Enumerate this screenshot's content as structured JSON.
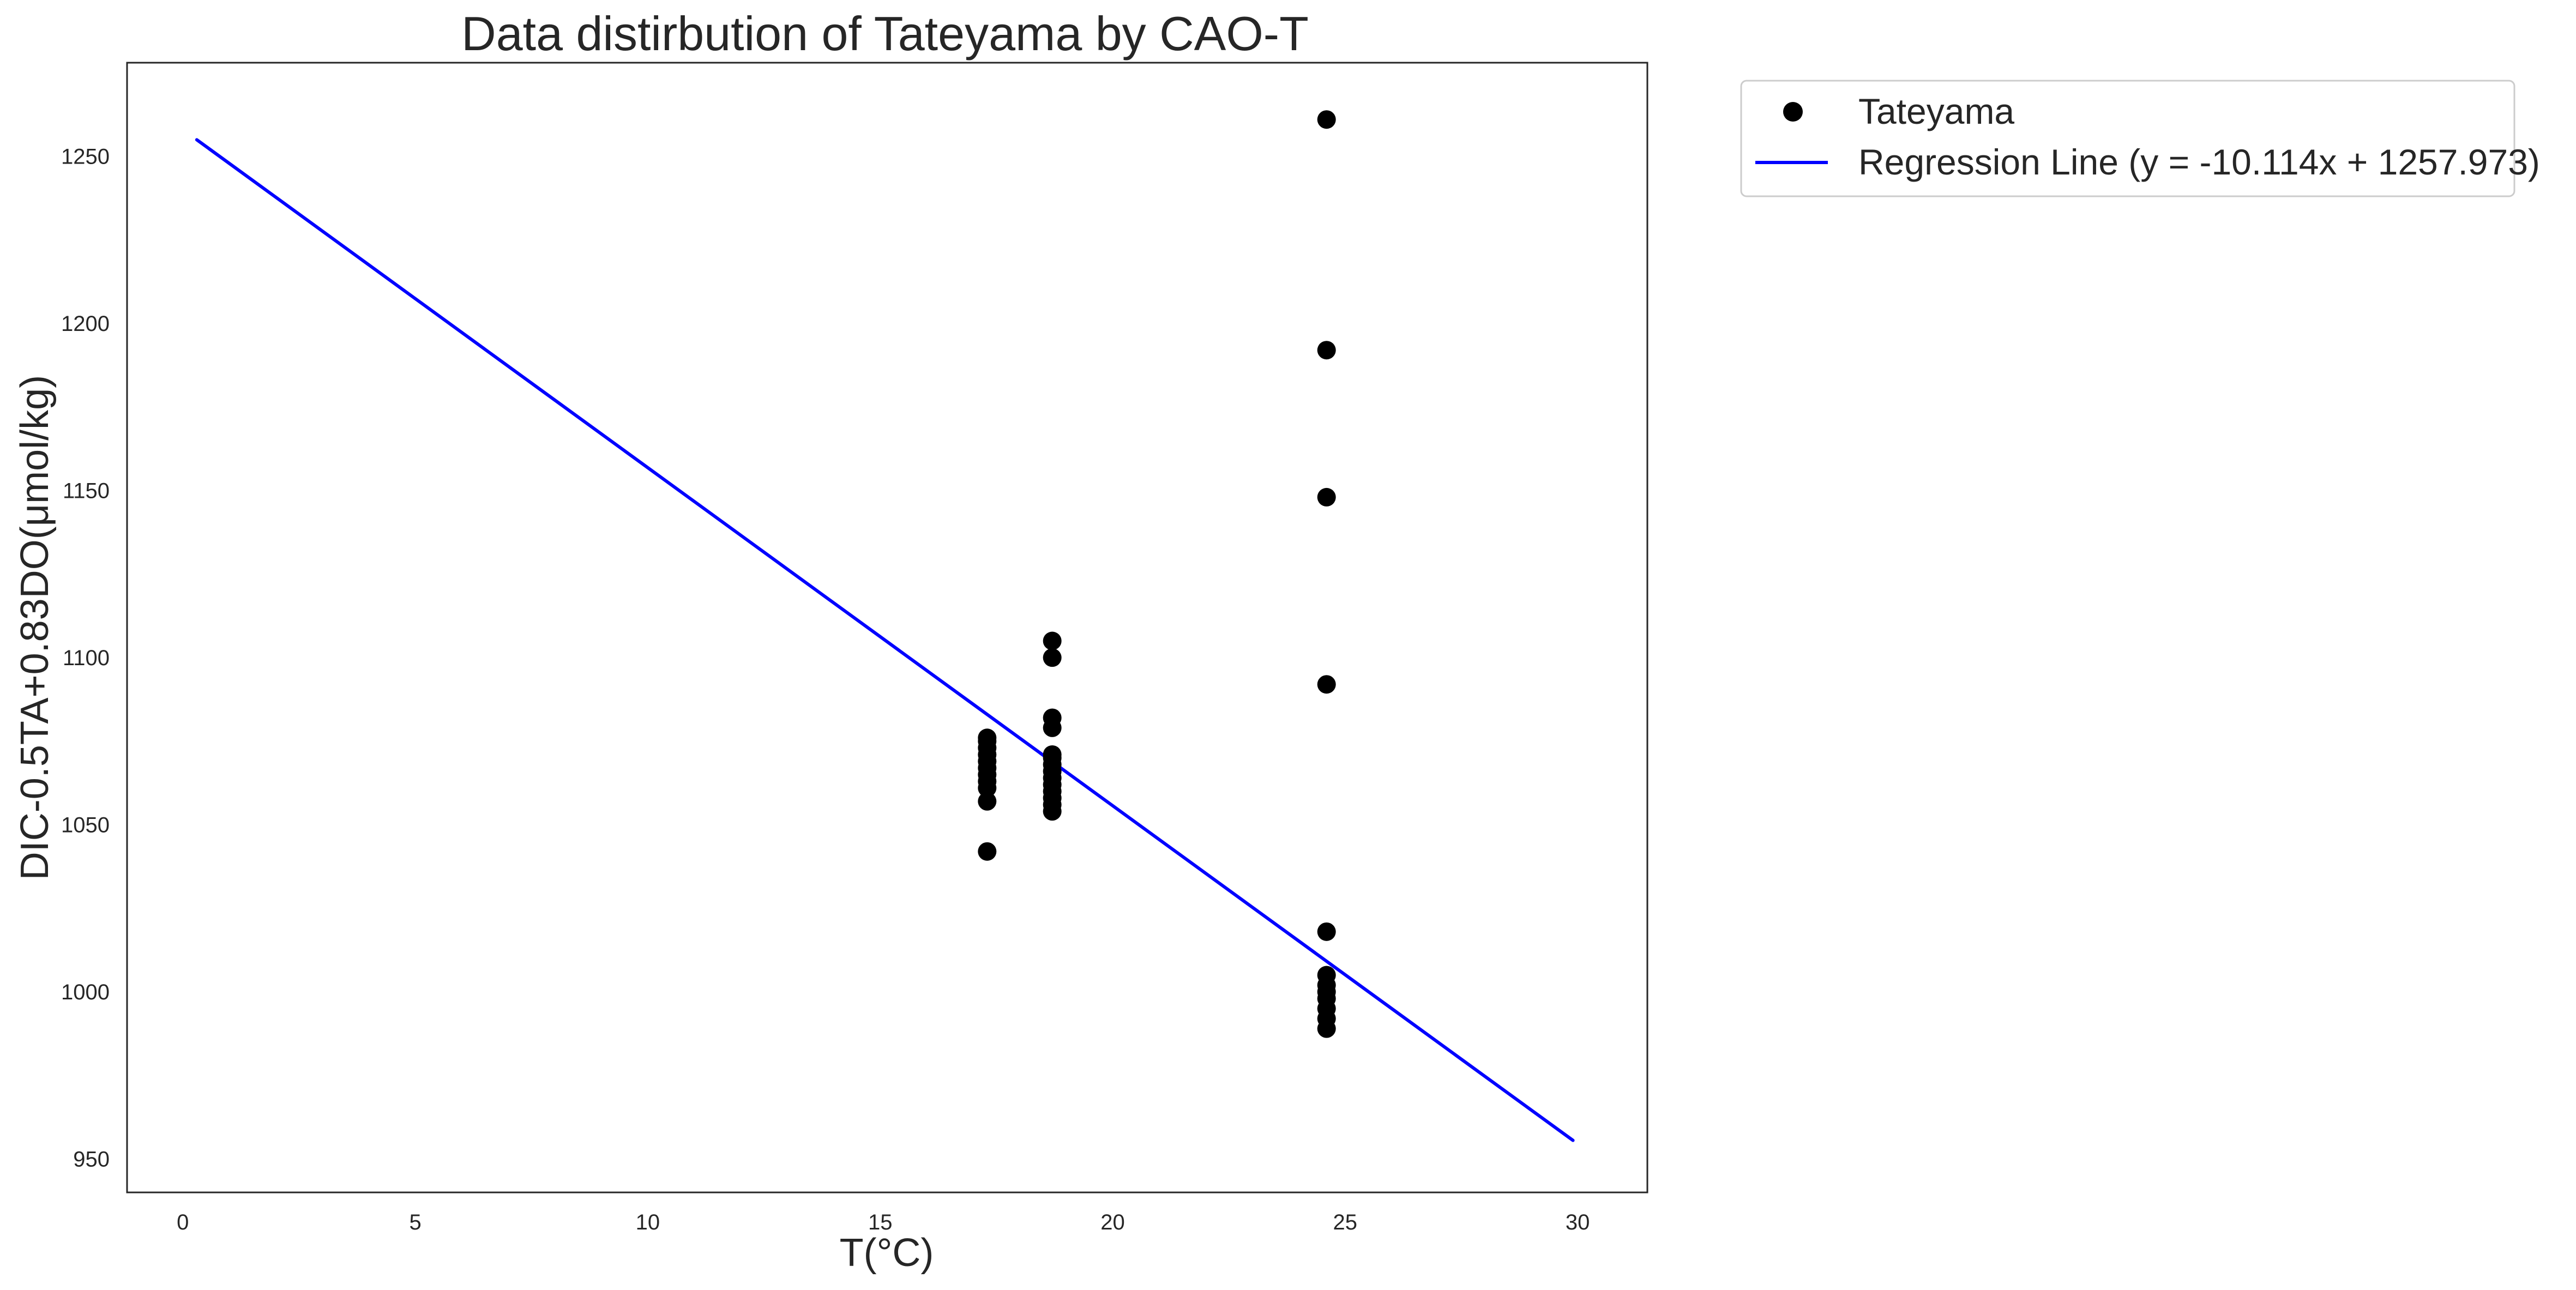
{
  "chart_data": {
    "type": "scatter",
    "title": "Data distirbution of Tateyama by CAO-T",
    "xlabel": "T(°C)",
    "ylabel": "DIC-0.5TA+0.83DO(μmol/kg)",
    "xlim": [
      -1.2,
      31.5
    ],
    "ylim": [
      940,
      1278
    ],
    "xticks": [
      0,
      5,
      10,
      15,
      20,
      25,
      30
    ],
    "yticks": [
      950,
      1000,
      1050,
      1100,
      1150,
      1200,
      1250
    ],
    "grid": false,
    "legend_position": "outside-top-right",
    "series": [
      {
        "name": "Tateyama",
        "kind": "scatter",
        "color": "#000000",
        "points": [
          [
            17.3,
            1042
          ],
          [
            17.3,
            1057
          ],
          [
            17.3,
            1061
          ],
          [
            17.3,
            1063
          ],
          [
            17.3,
            1065
          ],
          [
            17.3,
            1067
          ],
          [
            17.3,
            1069
          ],
          [
            17.3,
            1071
          ],
          [
            17.3,
            1073
          ],
          [
            17.3,
            1075
          ],
          [
            17.3,
            1076
          ],
          [
            18.7,
            1054
          ],
          [
            18.7,
            1056
          ],
          [
            18.7,
            1058
          ],
          [
            18.7,
            1060
          ],
          [
            18.7,
            1062
          ],
          [
            18.7,
            1064
          ],
          [
            18.7,
            1066
          ],
          [
            18.7,
            1068
          ],
          [
            18.7,
            1070
          ],
          [
            18.7,
            1071
          ],
          [
            18.7,
            1079
          ],
          [
            18.7,
            1082
          ],
          [
            18.7,
            1100
          ],
          [
            18.7,
            1105
          ],
          [
            24.6,
            989
          ],
          [
            24.6,
            992
          ],
          [
            24.6,
            995
          ],
          [
            24.6,
            998
          ],
          [
            24.6,
            1000
          ],
          [
            24.6,
            1002
          ],
          [
            24.6,
            1005
          ],
          [
            24.6,
            1018
          ],
          [
            24.6,
            1092
          ],
          [
            24.6,
            1148
          ],
          [
            24.6,
            1192
          ],
          [
            24.6,
            1261
          ]
        ]
      },
      {
        "name": "Regression Line (y = -10.114x + 1257.973)",
        "kind": "line",
        "color": "#0000ff",
        "slope": -10.114,
        "intercept": 1257.973,
        "x_range": [
          0.3,
          29.9
        ]
      }
    ]
  }
}
